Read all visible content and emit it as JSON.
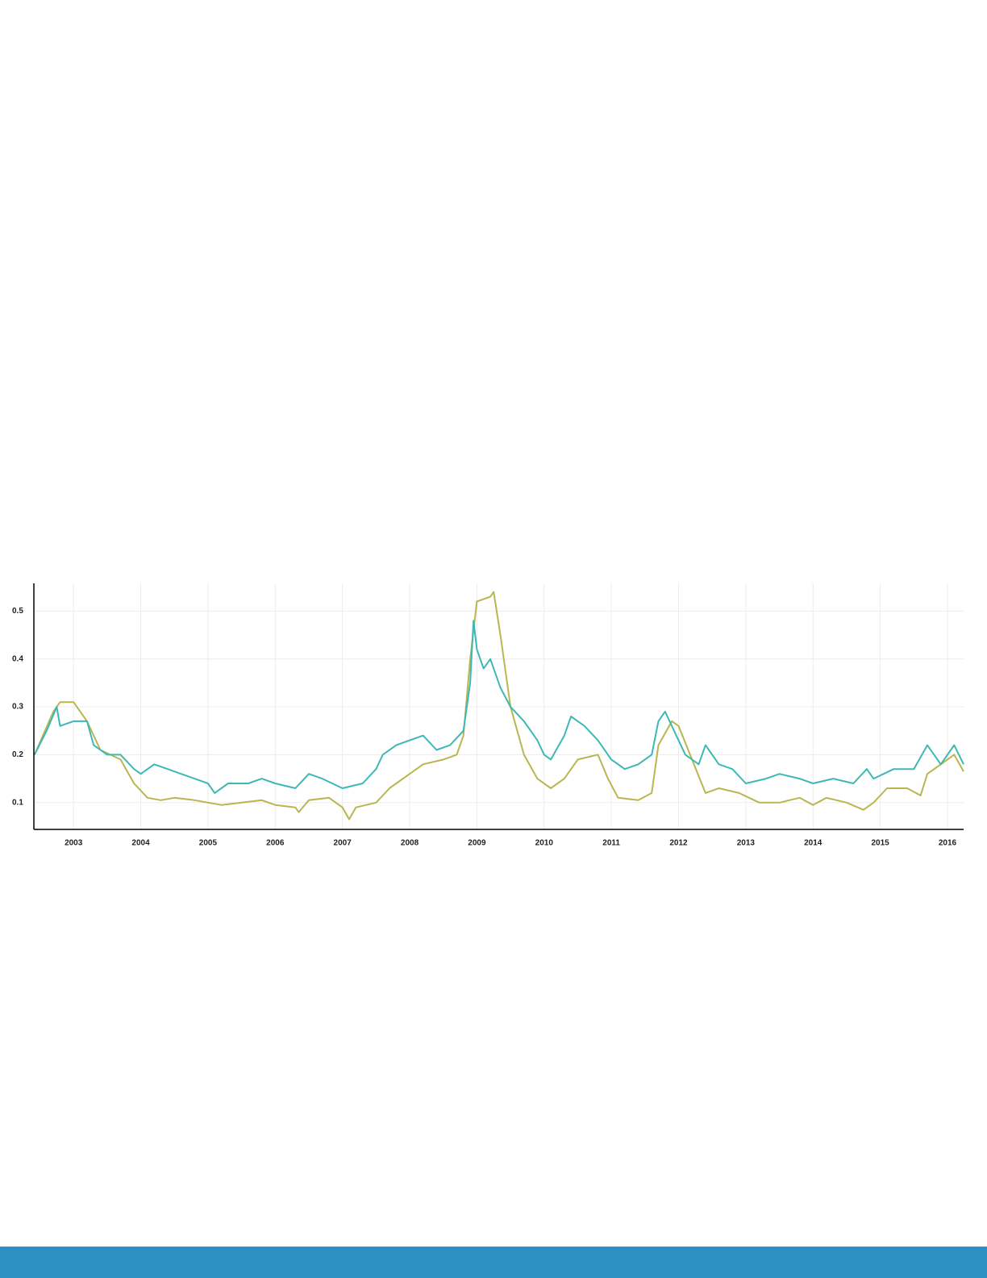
{
  "chart_data": {
    "type": "line",
    "xlim": [
      2002.41,
      2016.24
    ],
    "xticks": [
      2003,
      2004,
      2005,
      2006,
      2007,
      2008,
      2009,
      2010,
      2011,
      2012,
      2013,
      2014,
      2015,
      2016
    ],
    "ylim": [
      0.044,
      0.558
    ],
    "yticks": [
      0.1,
      0.2,
      0.3,
      0.4,
      0.5
    ],
    "grid": true,
    "series": [
      {
        "color": "#b9b650",
        "x": [
          2002.42,
          2002.7,
          2002.8,
          2003.0,
          2003.2,
          2003.4,
          2003.7,
          2003.9,
          2004.1,
          2004.3,
          2004.5,
          2004.8,
          2005.0,
          2005.2,
          2005.5,
          2005.8,
          2006.0,
          2006.3,
          2006.35,
          2006.5,
          2006.8,
          2007.0,
          2007.1,
          2007.2,
          2007.5,
          2007.7,
          2008.0,
          2008.2,
          2008.5,
          2008.7,
          2008.8,
          2008.9,
          2009.0,
          2009.2,
          2009.25,
          2009.35,
          2009.5,
          2009.7,
          2009.9,
          2010.1,
          2010.3,
          2010.5,
          2010.8,
          2010.95,
          2011.1,
          2011.4,
          2011.6,
          2011.7,
          2011.9,
          2012.0,
          2012.2,
          2012.4,
          2012.6,
          2012.9,
          2013.2,
          2013.5,
          2013.8,
          2014.0,
          2014.2,
          2014.5,
          2014.75,
          2014.9,
          2015.1,
          2015.4,
          2015.6,
          2015.7,
          2015.9,
          2016.1,
          2016.24
        ],
        "values": [
          0.2,
          0.29,
          0.31,
          0.31,
          0.27,
          0.21,
          0.19,
          0.14,
          0.11,
          0.105,
          0.11,
          0.105,
          0.1,
          0.095,
          0.1,
          0.105,
          0.095,
          0.09,
          0.08,
          0.105,
          0.11,
          0.09,
          0.065,
          0.09,
          0.1,
          0.13,
          0.16,
          0.18,
          0.19,
          0.2,
          0.24,
          0.4,
          0.52,
          0.53,
          0.54,
          0.45,
          0.3,
          0.2,
          0.15,
          0.13,
          0.15,
          0.19,
          0.2,
          0.15,
          0.11,
          0.105,
          0.12,
          0.22,
          0.27,
          0.26,
          0.19,
          0.12,
          0.13,
          0.12,
          0.1,
          0.1,
          0.11,
          0.095,
          0.11,
          0.1,
          0.085,
          0.1,
          0.13,
          0.13,
          0.115,
          0.16,
          0.18,
          0.2,
          0.165
        ]
      },
      {
        "color": "#3db8b5",
        "x": [
          2002.42,
          2002.6,
          2002.75,
          2002.8,
          2003.0,
          2003.2,
          2003.3,
          2003.5,
          2003.7,
          2003.9,
          2004.0,
          2004.2,
          2004.4,
          2004.6,
          2004.8,
          2005.0,
          2005.1,
          2005.3,
          2005.6,
          2005.8,
          2006.0,
          2006.3,
          2006.5,
          2006.7,
          2007.0,
          2007.3,
          2007.5,
          2007.6,
          2007.8,
          2008.0,
          2008.2,
          2008.4,
          2008.6,
          2008.8,
          2008.9,
          2008.95,
          2009.0,
          2009.1,
          2009.2,
          2009.35,
          2009.5,
          2009.7,
          2009.9,
          2010.0,
          2010.1,
          2010.3,
          2010.4,
          2010.6,
          2010.8,
          2011.0,
          2011.2,
          2011.4,
          2011.6,
          2011.7,
          2011.8,
          2012.0,
          2012.1,
          2012.3,
          2012.4,
          2012.6,
          2012.8,
          2013.0,
          2013.3,
          2013.5,
          2013.8,
          2014.0,
          2014.3,
          2014.6,
          2014.8,
          2014.9,
          2015.2,
          2015.5,
          2015.7,
          2015.9,
          2016.1,
          2016.24
        ],
        "values": [
          0.2,
          0.25,
          0.3,
          0.26,
          0.27,
          0.27,
          0.22,
          0.2,
          0.2,
          0.17,
          0.16,
          0.18,
          0.17,
          0.16,
          0.15,
          0.14,
          0.12,
          0.14,
          0.14,
          0.15,
          0.14,
          0.13,
          0.16,
          0.15,
          0.13,
          0.14,
          0.17,
          0.2,
          0.22,
          0.23,
          0.24,
          0.21,
          0.22,
          0.25,
          0.35,
          0.48,
          0.42,
          0.38,
          0.4,
          0.34,
          0.3,
          0.27,
          0.23,
          0.2,
          0.19,
          0.24,
          0.28,
          0.26,
          0.23,
          0.19,
          0.17,
          0.18,
          0.2,
          0.27,
          0.29,
          0.23,
          0.2,
          0.18,
          0.22,
          0.18,
          0.17,
          0.14,
          0.15,
          0.16,
          0.15,
          0.14,
          0.15,
          0.14,
          0.17,
          0.15,
          0.17,
          0.17,
          0.22,
          0.18,
          0.22,
          0.18
        ]
      }
    ]
  }
}
